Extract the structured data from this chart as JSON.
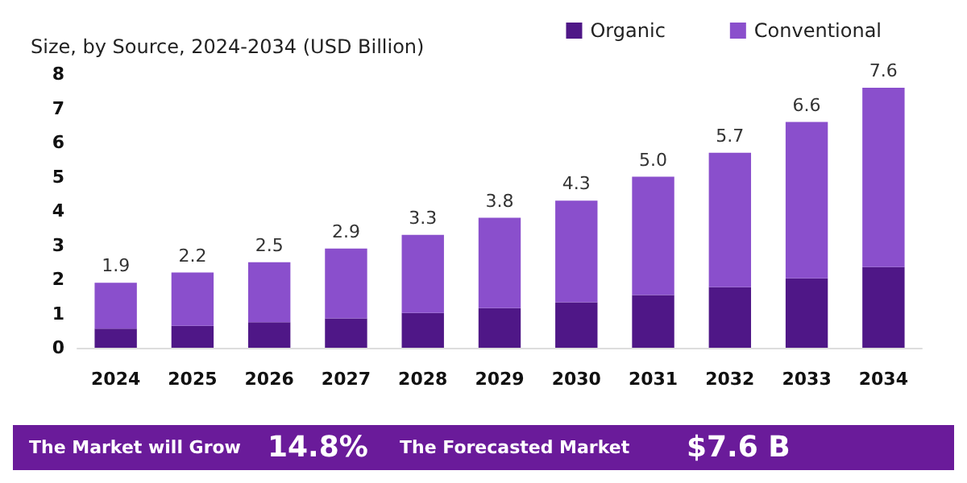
{
  "chart_data": {
    "type": "bar",
    "title": "Size, by Source, 2024-2034 (USD Billion)",
    "categories": [
      "2024",
      "2025",
      "2026",
      "2027",
      "2028",
      "2029",
      "2030",
      "2031",
      "2032",
      "2033",
      "2034"
    ],
    "series": [
      {
        "name": "Organic",
        "color": "#4f1787",
        "values": [
          0.56,
          0.64,
          0.75,
          0.86,
          1.02,
          1.16,
          1.33,
          1.54,
          1.77,
          2.03,
          2.36
        ]
      },
      {
        "name": "Conventional",
        "color": "#8a4fcc",
        "values": [
          1.34,
          1.56,
          1.75,
          2.04,
          2.28,
          2.64,
          2.97,
          3.46,
          3.93,
          4.57,
          5.24
        ]
      }
    ],
    "stacked": true,
    "totals": [
      "1.9",
      "2.2",
      "2.5",
      "2.9",
      "3.3",
      "3.8",
      "4.3",
      "5.0",
      "5.7",
      "6.6",
      "7.6"
    ],
    "ylim": [
      0,
      8
    ],
    "yticks": [
      0,
      1,
      2,
      3,
      4,
      5,
      6,
      7,
      8
    ],
    "grid": false,
    "legend": "top right",
    "annotations": [
      "The Market will Grow",
      "14.8%",
      "The Forecasted Market",
      "$7.6 B"
    ]
  }
}
